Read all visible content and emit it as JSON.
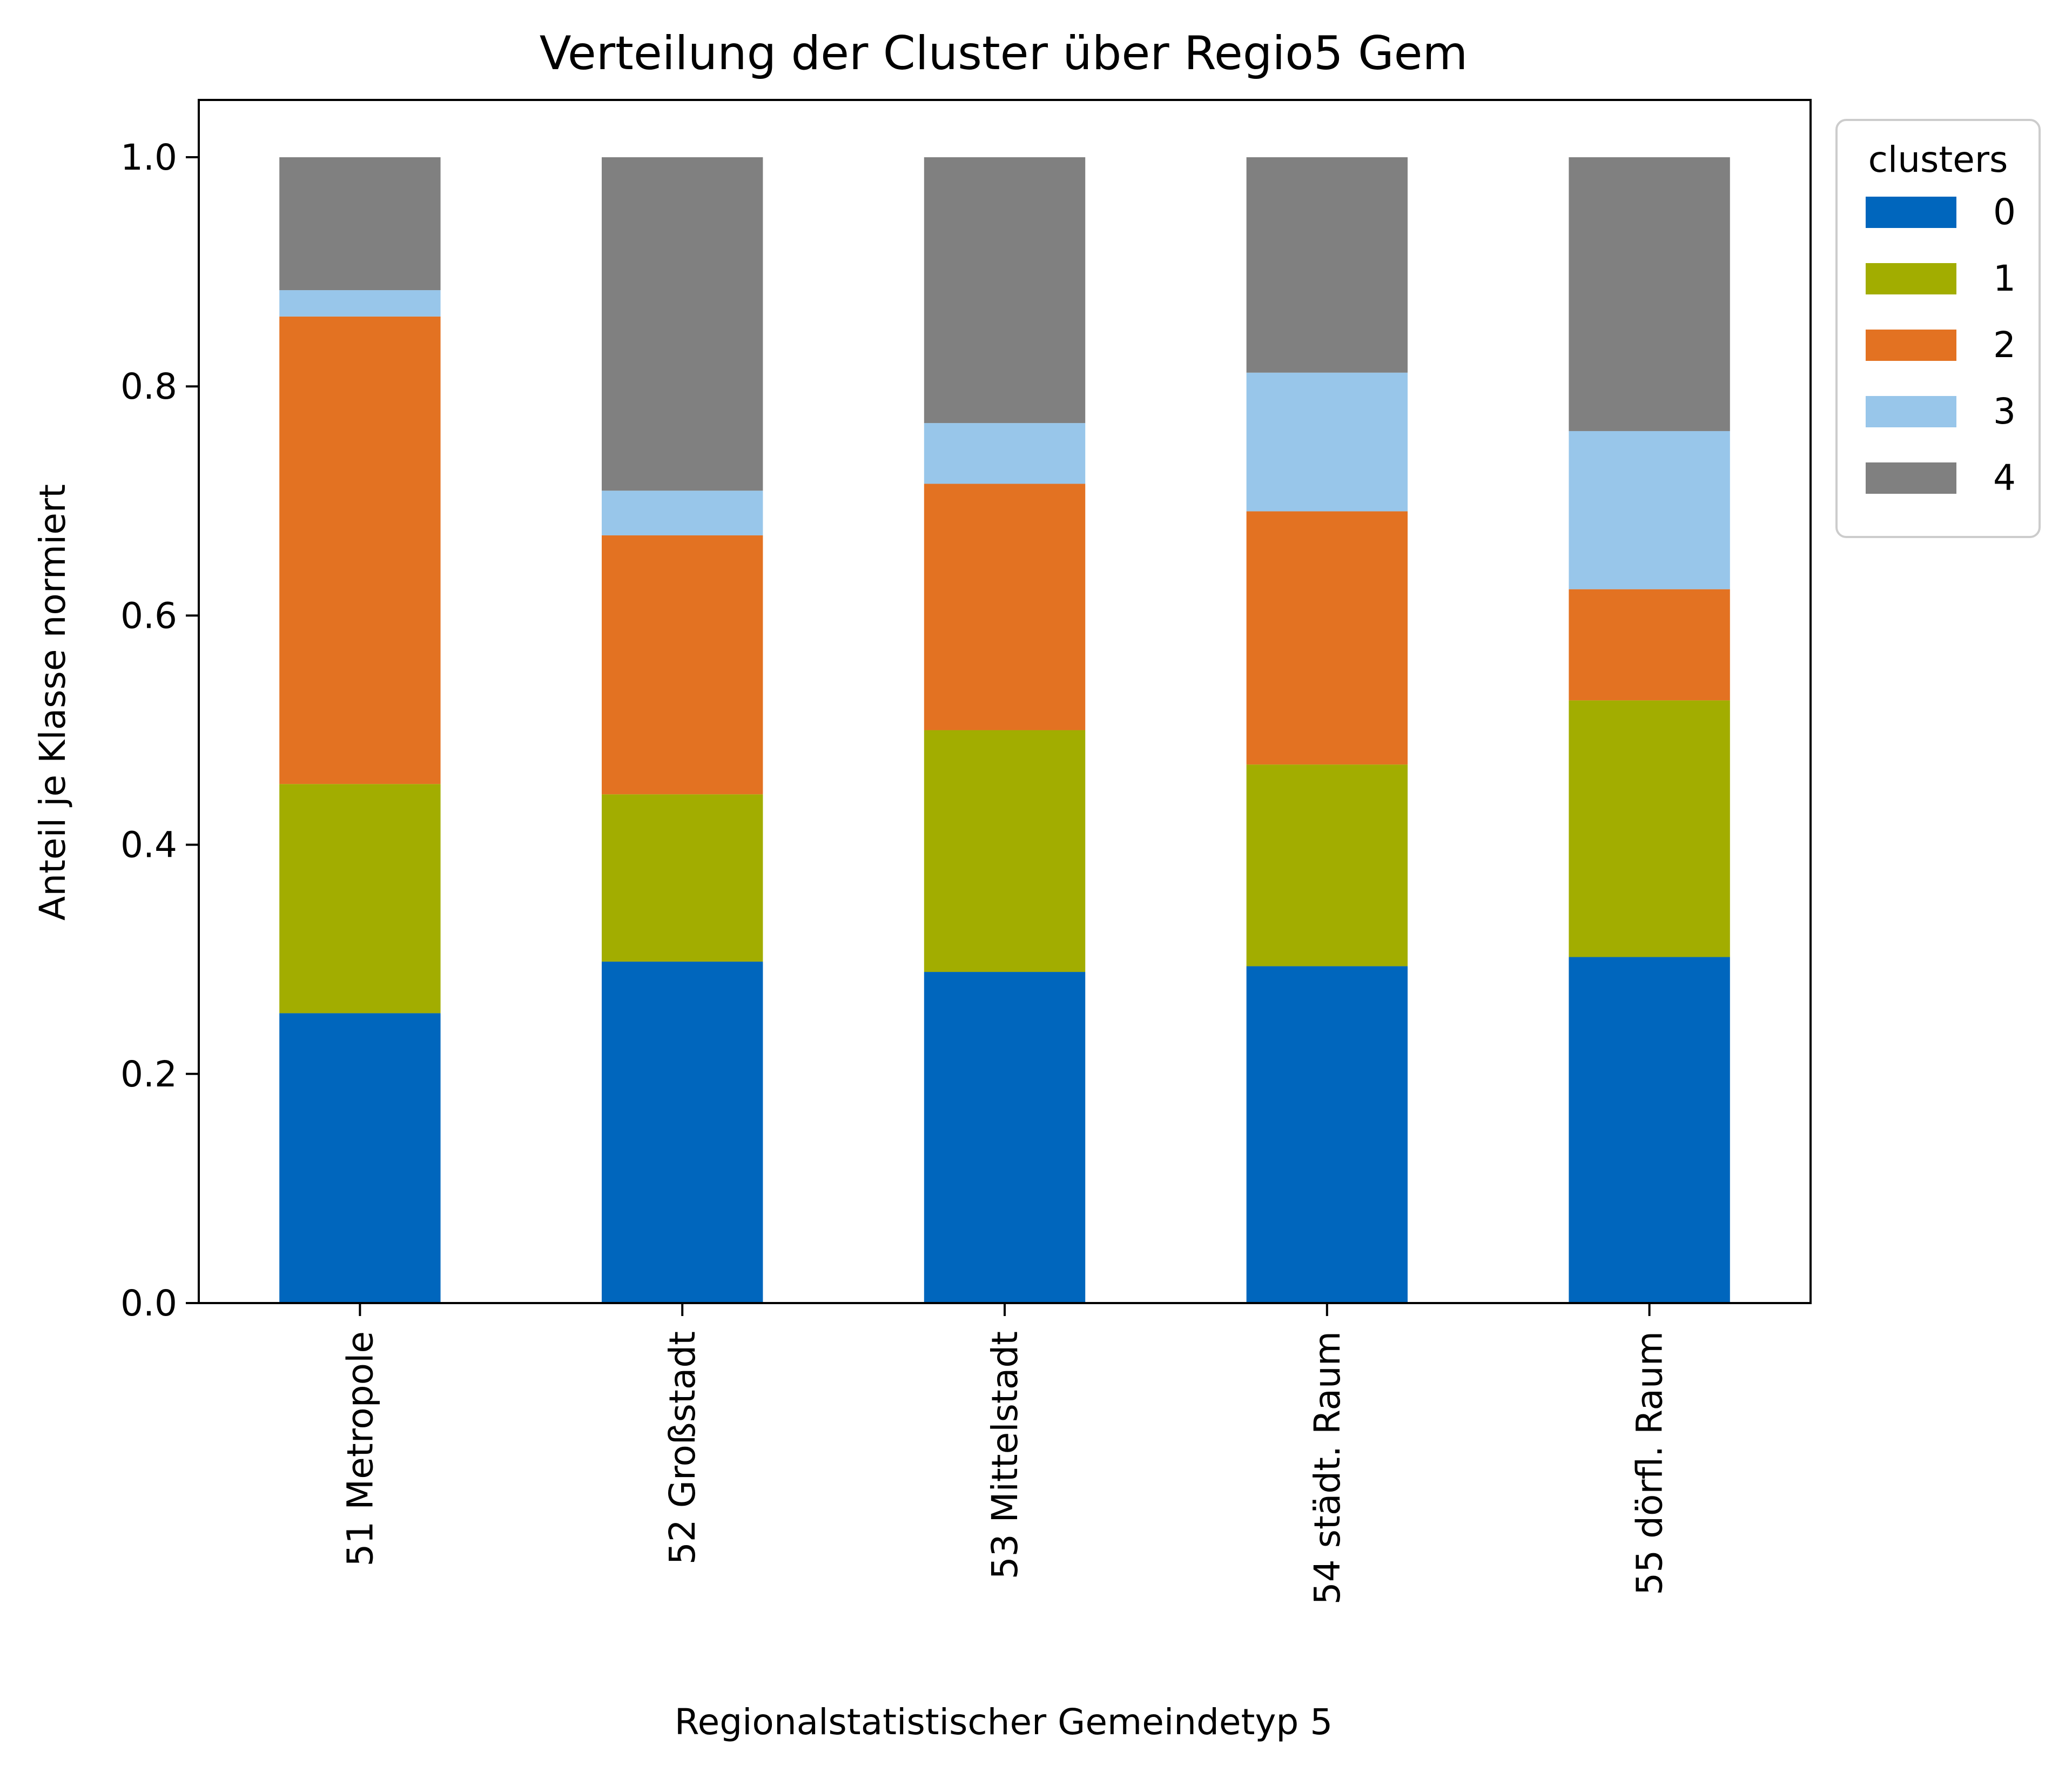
{
  "chart_data": {
    "type": "bar",
    "stacked": true,
    "title": "Verteilung der Cluster über Regio5 Gem",
    "xlabel": "Regionalstatistischer Gemeindetyp 5",
    "ylabel": "Anteil je Klasse normiert",
    "ylim": [
      0,
      1.05
    ],
    "yticks": [
      "0.0",
      "0.2",
      "0.4",
      "0.6",
      "0.8",
      "1.0"
    ],
    "categories": [
      "51 Metropole",
      "52 Großstadt",
      "53 Mittelstadt",
      "54 städt. Raum",
      "55 dörfl. Raum"
    ],
    "legend": {
      "title": "clusters",
      "placement": "outside top-right"
    },
    "series": [
      {
        "name": "0",
        "color": "#0066bd",
        "values": [
          0.253,
          0.298,
          0.289,
          0.294,
          0.302
        ]
      },
      {
        "name": "1",
        "color": "#a2ad00",
        "values": [
          0.2,
          0.146,
          0.211,
          0.176,
          0.224
        ]
      },
      {
        "name": "2",
        "color": "#e37222",
        "values": [
          0.408,
          0.226,
          0.215,
          0.221,
          0.097
        ]
      },
      {
        "name": "3",
        "color": "#98c6ea",
        "values": [
          0.023,
          0.039,
          0.053,
          0.121,
          0.138
        ]
      },
      {
        "name": "4",
        "color": "#808080",
        "values": [
          0.116,
          0.291,
          0.232,
          0.188,
          0.239
        ]
      }
    ],
    "grid": false
  }
}
